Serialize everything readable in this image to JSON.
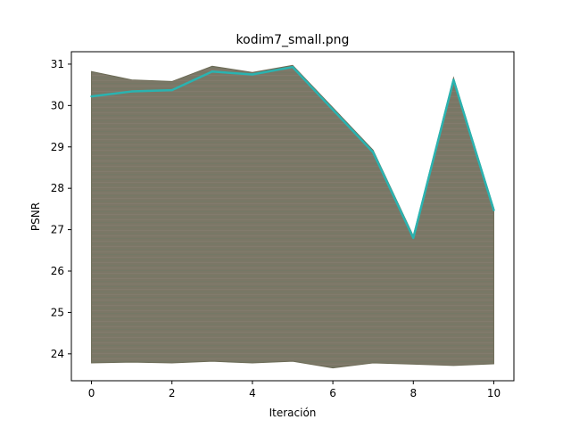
{
  "chart_data": {
    "type": "line",
    "title": "kodim7_small.png",
    "xlabel": "Iteración",
    "ylabel": "PSNR",
    "xlim": [
      -0.5,
      10.5
    ],
    "ylim": [
      23.35,
      31.3
    ],
    "xticks": [
      0,
      2,
      4,
      6,
      8,
      10
    ],
    "yticks": [
      24,
      25,
      26,
      27,
      28,
      29,
      30,
      31
    ],
    "grid": false,
    "x": [
      0,
      1,
      2,
      3,
      4,
      5,
      6,
      7,
      8,
      9,
      10
    ],
    "series": [
      {
        "values": [
          30.22,
          30.34,
          30.37,
          30.82,
          30.75,
          30.93,
          29.9,
          28.87,
          26.8,
          30.62,
          27.47
        ],
        "color": "#2ab3b0"
      }
    ],
    "band": {
      "upper": [
        30.82,
        30.62,
        30.58,
        30.95,
        30.8,
        30.97,
        29.95,
        28.92,
        26.85,
        30.67,
        27.52
      ],
      "lower": [
        23.78,
        23.8,
        23.78,
        23.82,
        23.78,
        23.82,
        23.66,
        23.78,
        23.75,
        23.72,
        23.76
      ],
      "color": "#7b7766"
    }
  }
}
